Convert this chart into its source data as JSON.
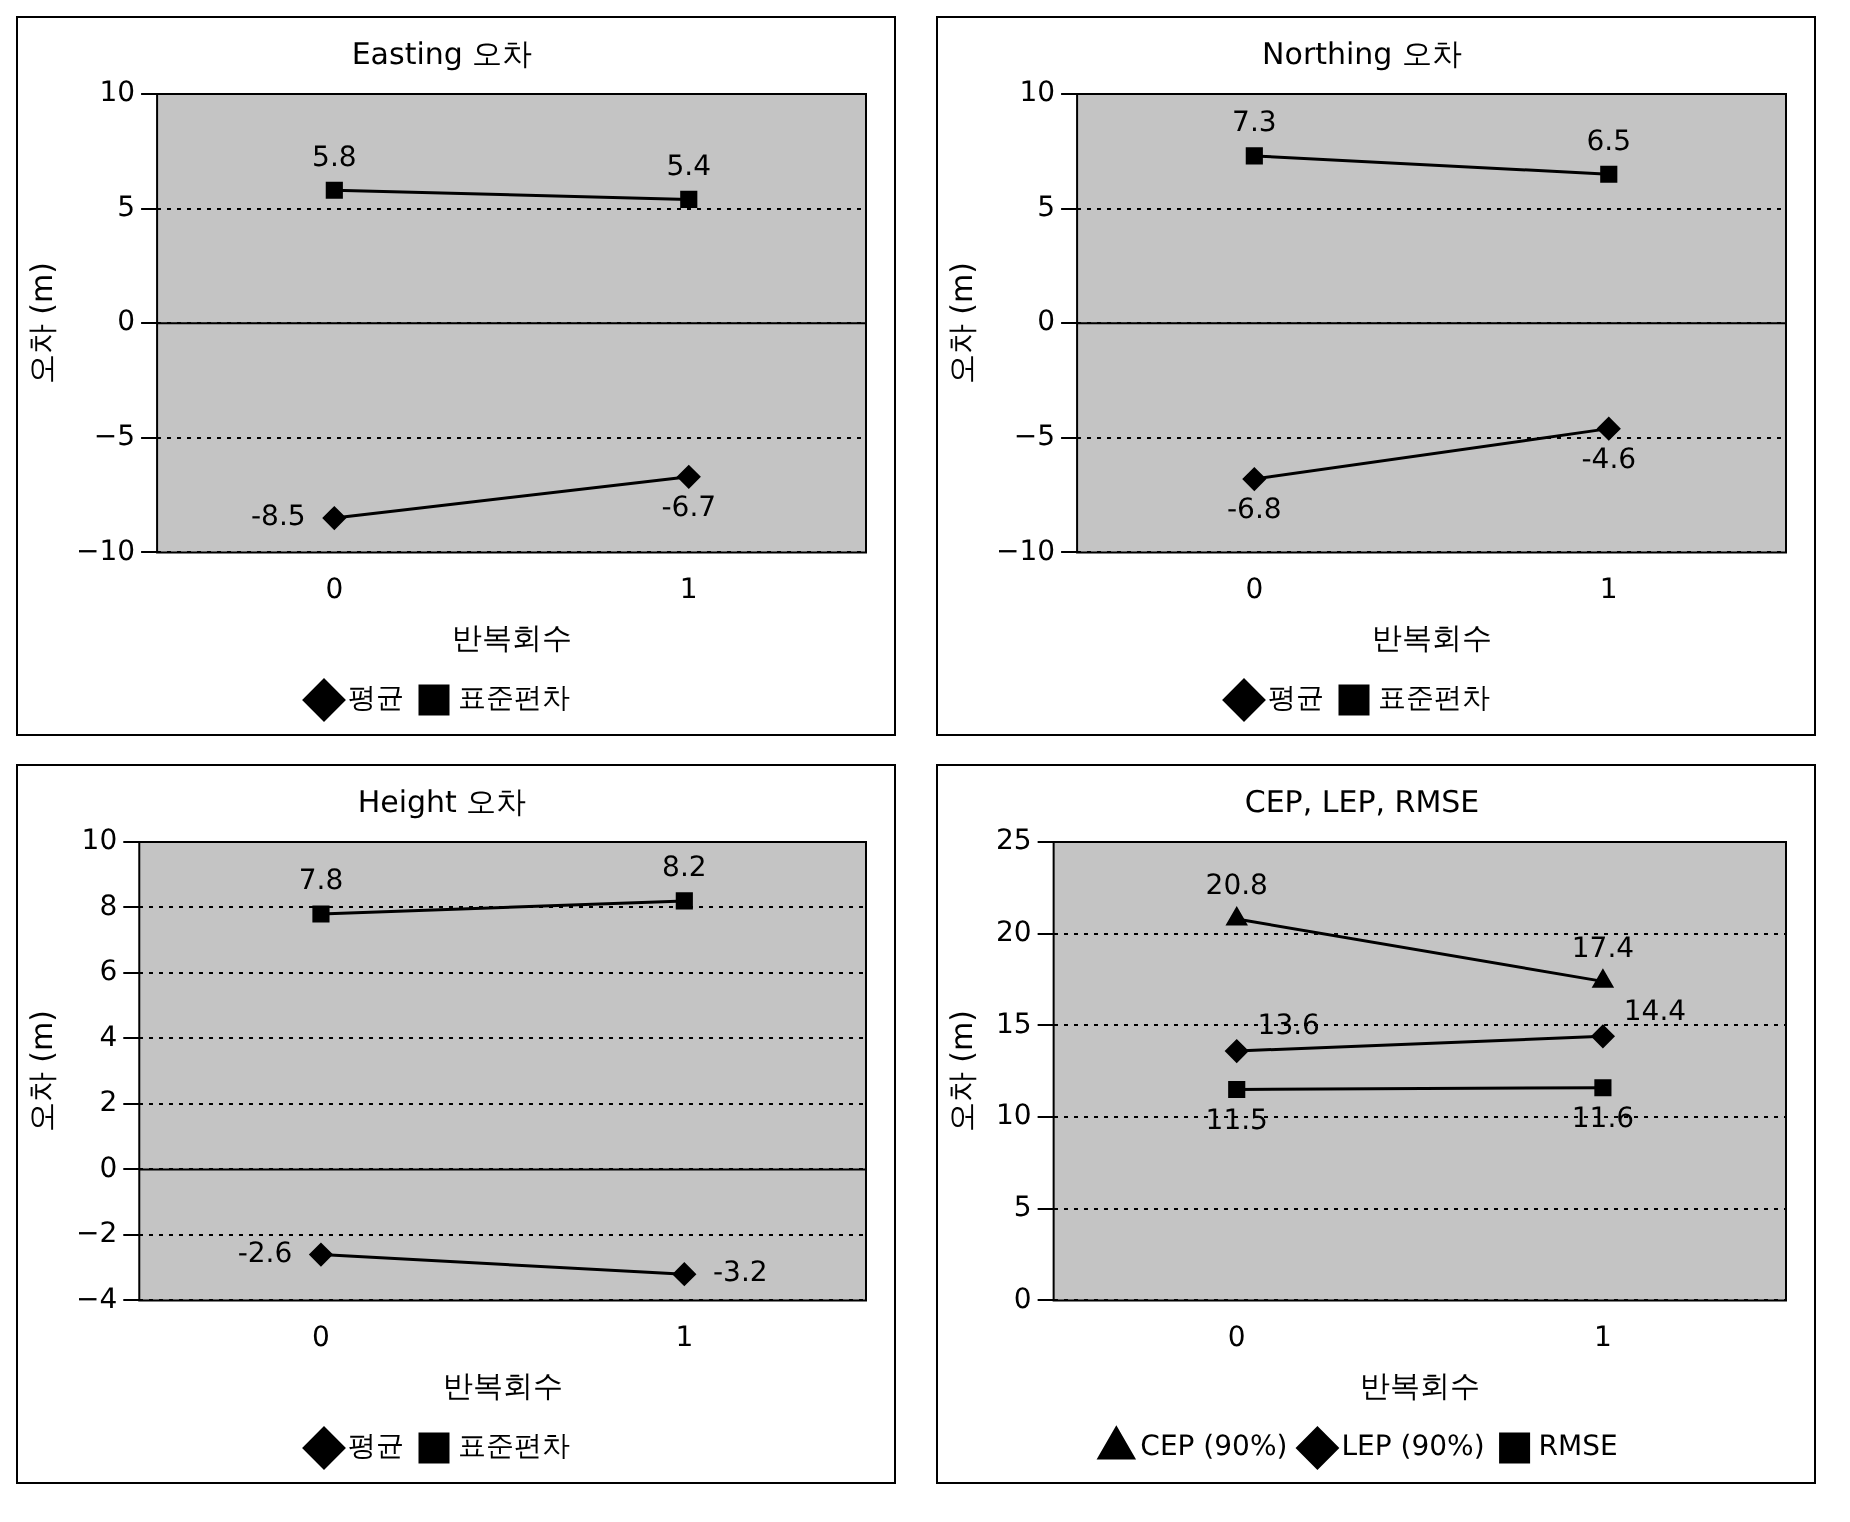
{
  "chart_data": [
    {
      "type": "line",
      "title": "Easting 오차",
      "xlabel": "반복회수",
      "ylabel": "오차 (m)",
      "categories": [
        "0",
        "1"
      ],
      "ylim": [
        -10,
        10
      ],
      "yticks": [
        -10,
        -5,
        0,
        5,
        10
      ],
      "grid": "y",
      "legend": "bottom",
      "data_labels": true,
      "series": [
        {
          "name": "평균",
          "color": "#000000",
          "marker": "diamond",
          "values": [
            -8.5,
            -6.7
          ]
        },
        {
          "name": "표준편차",
          "color": "#000000",
          "marker": "square",
          "values": [
            5.8,
            5.4
          ]
        }
      ]
    },
    {
      "type": "line",
      "title": "Northing 오차",
      "xlabel": "반복회수",
      "ylabel": "오차 (m)",
      "categories": [
        "0",
        "1"
      ],
      "ylim": [
        -10,
        10
      ],
      "yticks": [
        -10,
        -5,
        0,
        5,
        10
      ],
      "grid": "y",
      "legend": "bottom",
      "data_labels": true,
      "series": [
        {
          "name": "평균",
          "color": "#000000",
          "marker": "diamond",
          "values": [
            -6.8,
            -4.6
          ]
        },
        {
          "name": "표준편차",
          "color": "#000000",
          "marker": "square",
          "values": [
            7.3,
            6.5
          ]
        }
      ]
    },
    {
      "type": "line",
      "title": "Height 오차",
      "xlabel": "반복회수",
      "ylabel": "오차 (m)",
      "categories": [
        "0",
        "1"
      ],
      "ylim": [
        -4,
        10
      ],
      "yticks": [
        -4,
        -2,
        0,
        2,
        4,
        6,
        8,
        10
      ],
      "grid": "y",
      "legend": "bottom",
      "data_labels": true,
      "series": [
        {
          "name": "평균",
          "color": "#000000",
          "marker": "diamond",
          "values": [
            -2.6,
            -3.2
          ]
        },
        {
          "name": "표준편차",
          "color": "#000000",
          "marker": "square",
          "values": [
            7.8,
            8.2
          ]
        }
      ]
    },
    {
      "type": "line",
      "title": "CEP, LEP, RMSE",
      "xlabel": "반복회수",
      "ylabel": "오차 (m)",
      "categories": [
        "0",
        "1"
      ],
      "ylim": [
        0,
        25
      ],
      "yticks": [
        0,
        5,
        10,
        15,
        20,
        25
      ],
      "grid": "y",
      "legend": "bottom",
      "data_labels": true,
      "series": [
        {
          "name": "CEP (90%)",
          "color": "#000000",
          "marker": "triangle",
          "values": [
            20.8,
            17.4
          ]
        },
        {
          "name": "LEP (90%)",
          "color": "#000000",
          "marker": "diamond",
          "values": [
            13.6,
            14.4
          ]
        },
        {
          "name": "RMSE",
          "color": "#000000",
          "marker": "square",
          "values": [
            11.5,
            11.6
          ]
        }
      ]
    }
  ]
}
